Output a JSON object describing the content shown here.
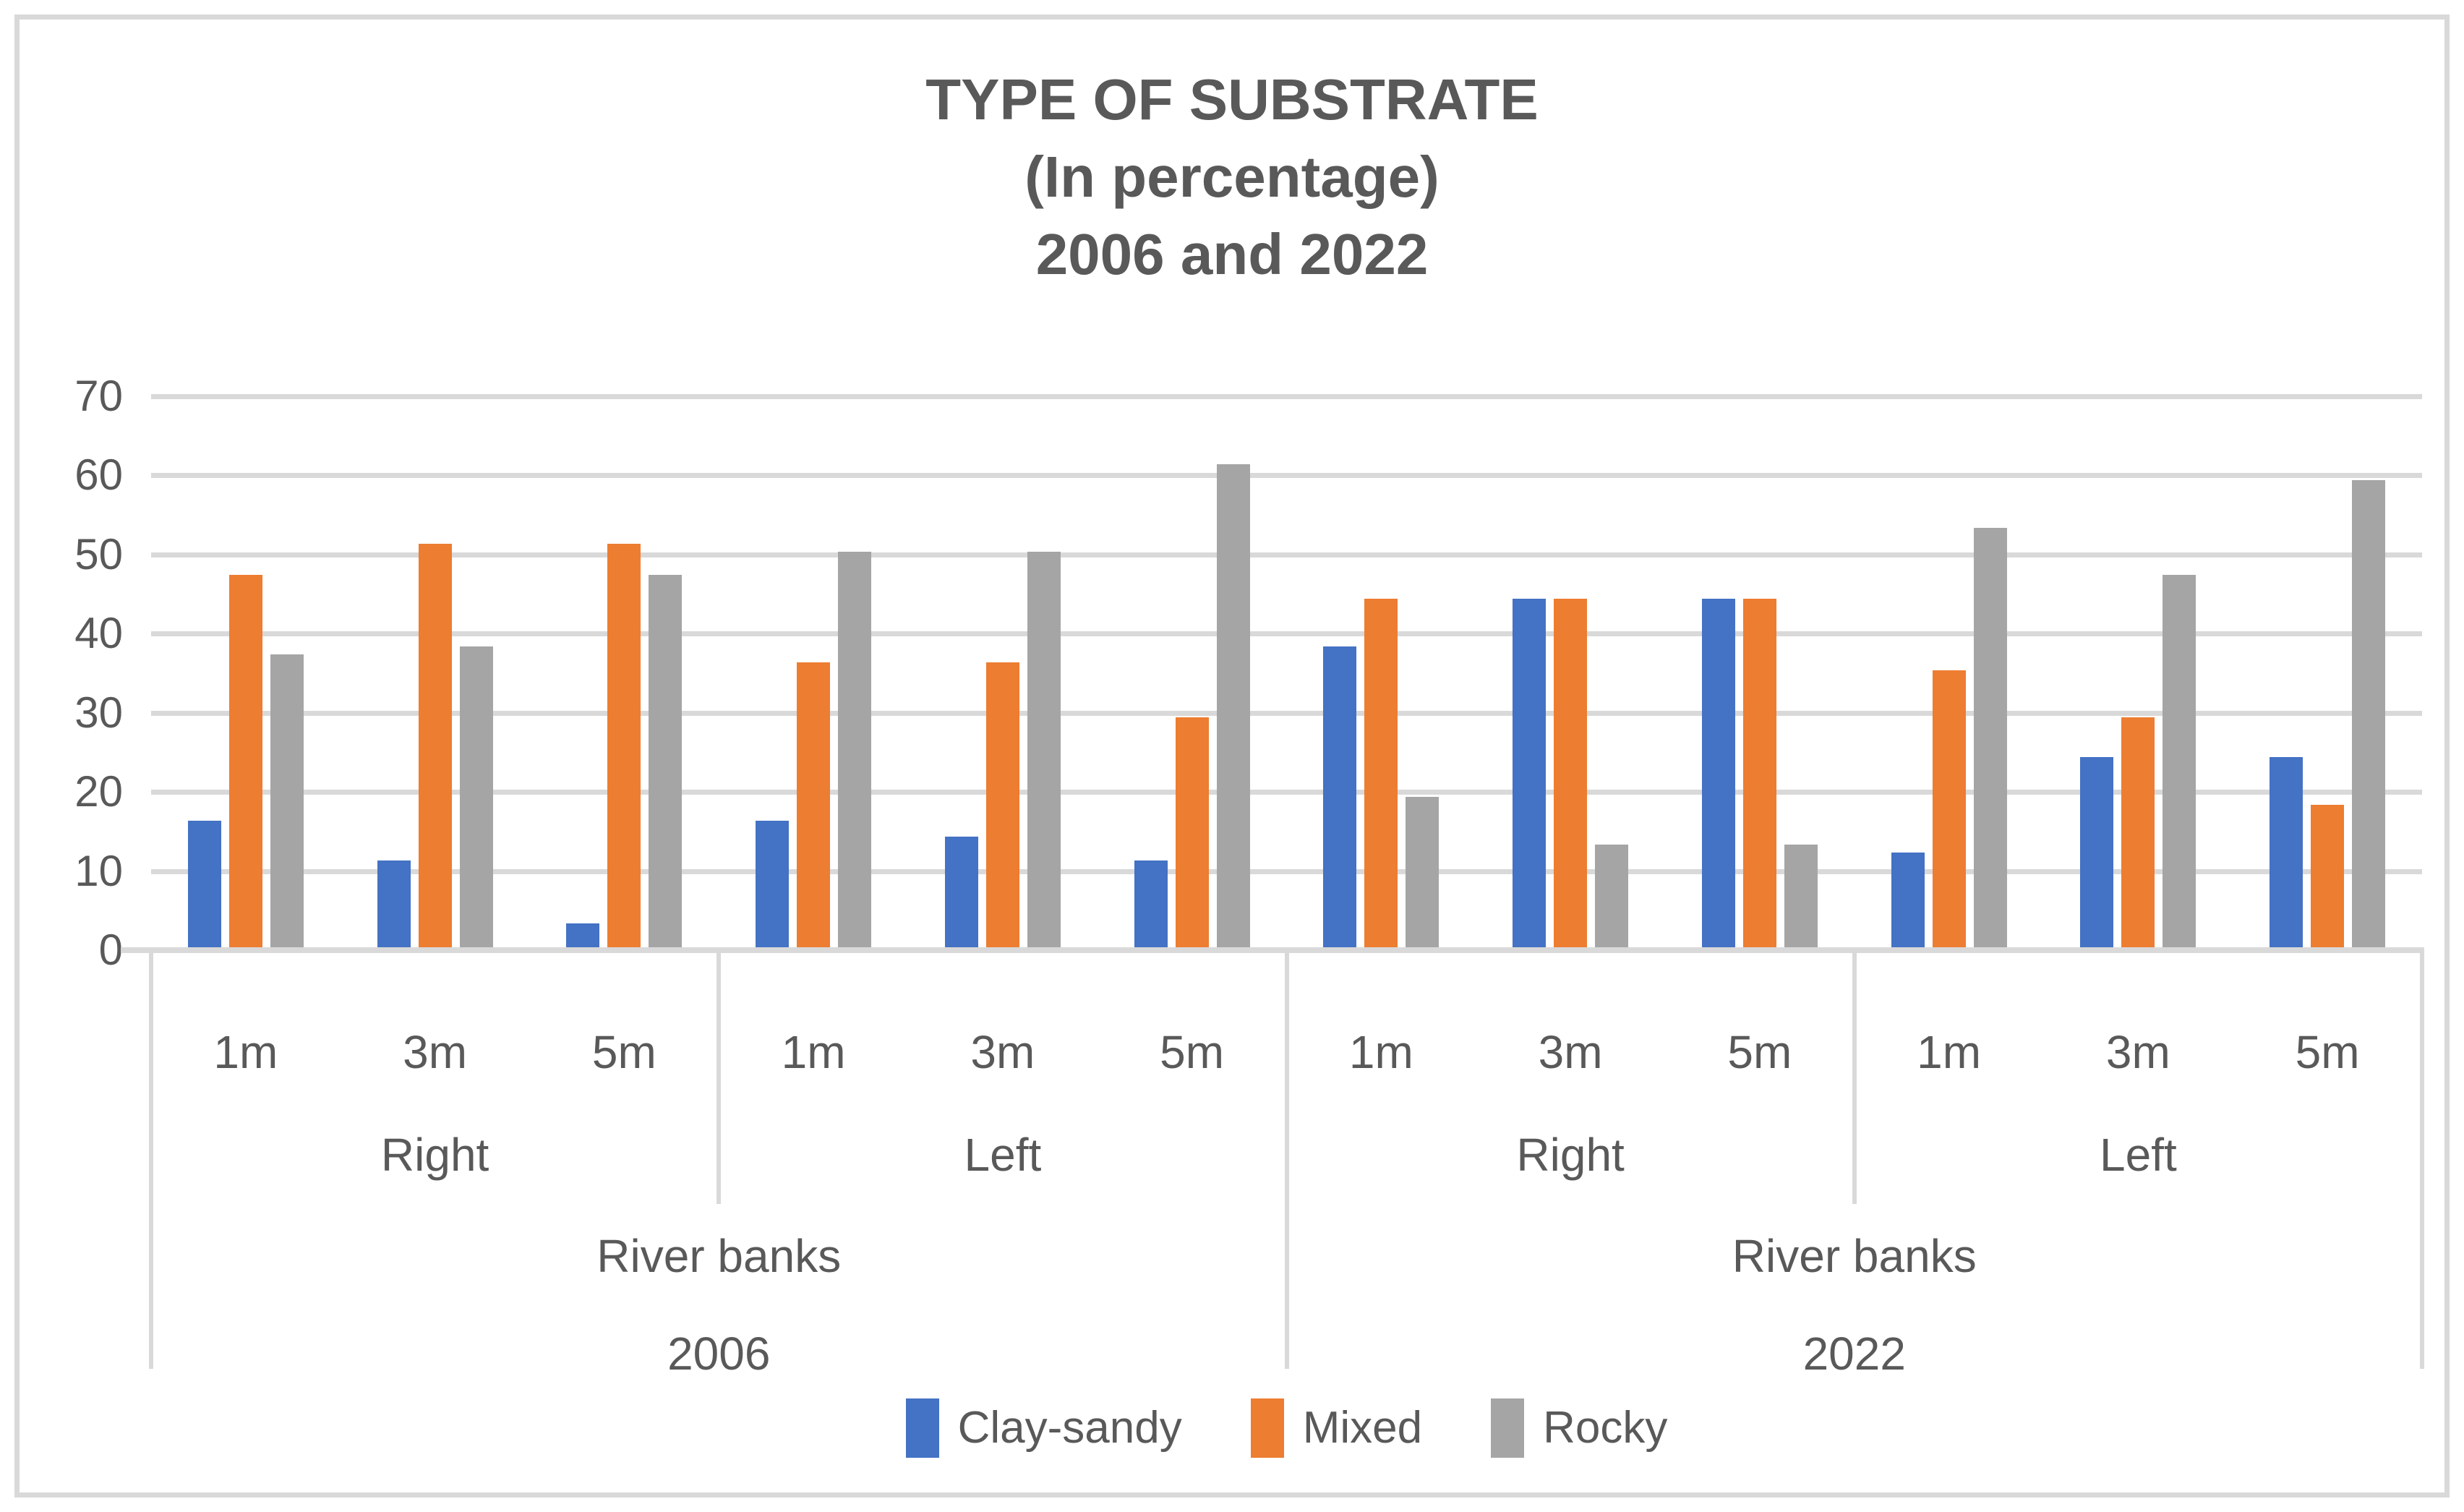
{
  "title": {
    "lines": [
      "TYPE OF SUBSTRATE",
      "(In percentage)",
      "2006 and 2022"
    ]
  },
  "colors": {
    "text": "#595959",
    "gridline": "#D9D9D9",
    "clay_sandy": "#4472C4",
    "mixed": "#ED7D31",
    "rocky": "#A5A5A5"
  },
  "chart_data": {
    "type": "bar",
    "title": "TYPE OF SUBSTRATE (In percentage) 2006 and 2022",
    "ylabel": "",
    "xlabel": "",
    "ylim": [
      0,
      70
    ],
    "yticks": [
      0,
      10,
      20,
      30,
      40,
      50,
      60,
      70
    ],
    "grid": true,
    "legend_position": "bottom",
    "categories": [
      "1m",
      "3m",
      "5m",
      "1m",
      "3m",
      "5m",
      "1m",
      "3m",
      "5m",
      "1m",
      "3m",
      "5m"
    ],
    "axis_hierarchy": {
      "level2": [
        {
          "label": "Right",
          "span_groups": [
            0,
            2
          ]
        },
        {
          "label": "Left",
          "span_groups": [
            3,
            5
          ]
        },
        {
          "label": "Right",
          "span_groups": [
            6,
            8
          ]
        },
        {
          "label": "Left",
          "span_groups": [
            9,
            11
          ]
        }
      ],
      "level3": [
        {
          "label": "River banks",
          "span_groups": [
            0,
            5
          ]
        },
        {
          "label": "River banks",
          "span_groups": [
            6,
            11
          ]
        }
      ],
      "level4": [
        {
          "label": "2006",
          "span_groups": [
            0,
            5
          ]
        },
        {
          "label": "2022",
          "span_groups": [
            6,
            11
          ]
        }
      ]
    },
    "series": [
      {
        "name": "Clay-sandy",
        "color": "#4472C4",
        "values": [
          16,
          11,
          3,
          16,
          14,
          11,
          38,
          44,
          44,
          12,
          24,
          24
        ]
      },
      {
        "name": "Mixed",
        "color": "#ED7D31",
        "values": [
          47,
          51,
          51,
          36,
          36,
          29,
          44,
          44,
          44,
          35,
          29,
          18
        ]
      },
      {
        "name": "Rocky",
        "color": "#A5A5A5",
        "values": [
          37,
          38,
          47,
          50,
          50,
          61,
          19,
          13,
          13,
          53,
          47,
          59
        ]
      }
    ]
  }
}
